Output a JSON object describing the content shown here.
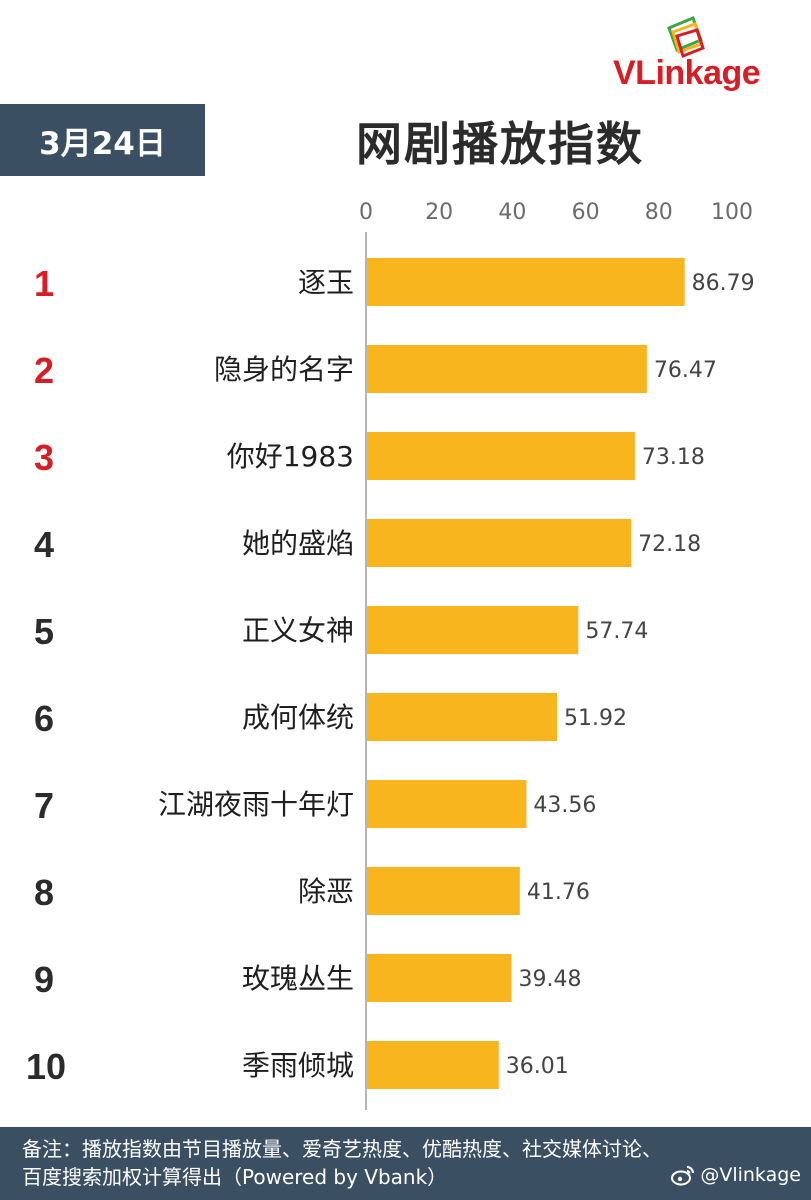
{
  "brand": {
    "logo_text": "VLinkage",
    "colors": {
      "red": "#d81e25",
      "green": "#3aa647",
      "yellow": "#f5b41a"
    }
  },
  "header": {
    "date": "3月24日",
    "title": "网剧播放指数"
  },
  "chart_data": {
    "type": "bar",
    "orientation": "horizontal",
    "categories": [
      "逐玉",
      "隐身的名字",
      "你好1983",
      "她的盛焰",
      "正义女神",
      "成何体统",
      "江湖夜雨十年灯",
      "除恶",
      "玫瑰丛生",
      "季雨倾城"
    ],
    "ranks": [
      "1",
      "2",
      "3",
      "4",
      "5",
      "6",
      "7",
      "8",
      "9",
      "10"
    ],
    "values": [
      86.79,
      76.47,
      73.18,
      72.18,
      57.74,
      51.92,
      43.56,
      41.76,
      39.48,
      36.01
    ],
    "value_labels": [
      "86.79",
      "76.47",
      "73.18",
      "72.18",
      "57.74",
      "51.92",
      "43.56",
      "41.76",
      "39.48",
      "36.01"
    ],
    "xlim": [
      0,
      100
    ],
    "xticks": [
      "0",
      "20",
      "40",
      "60",
      "80",
      "100"
    ],
    "bar_color": "#f9b51d",
    "top_rank_color": "#d81e25",
    "rank_color": "#2b2b2b",
    "grid": false
  },
  "footer": {
    "note": "备注：播放指数由节目播放量、爱奇艺热度、优酷热度、社交媒体讨论、百度搜索加权计算得出（Powered by Vbank）",
    "weibo": "@Vlinkage",
    "background": "#3b4f63"
  }
}
